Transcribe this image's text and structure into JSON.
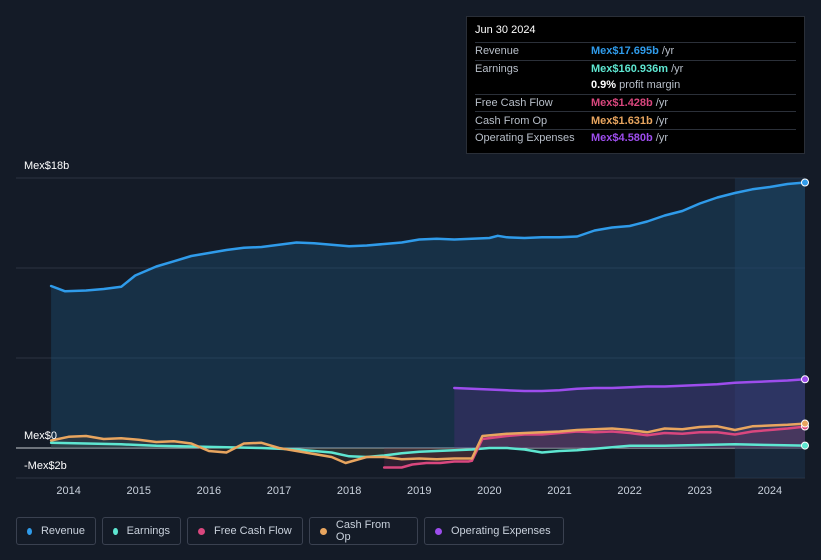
{
  "tooltip": {
    "date": "Jun 30 2024",
    "rows": [
      {
        "label": "Revenue",
        "value": "Mex$17.695b",
        "unit": "/yr",
        "color": "#2f9bea"
      },
      {
        "label": "Earnings",
        "value": "Mex$160.936m",
        "unit": "/yr",
        "color": "#5ee6d1"
      },
      {
        "label": "",
        "value": "0.9%",
        "unit": "profit margin",
        "color": "#ffffff"
      },
      {
        "label": "Free Cash Flow",
        "value": "Mex$1.428b",
        "unit": "/yr",
        "color": "#d9477e"
      },
      {
        "label": "Cash From Op",
        "value": "Mex$1.631b",
        "unit": "/yr",
        "color": "#e8a55f"
      },
      {
        "label": "Operating Expenses",
        "value": "Mex$4.580b",
        "unit": "/yr",
        "color": "#9d4ded"
      }
    ]
  },
  "legend": [
    {
      "label": "Revenue",
      "color": "#2f9bea"
    },
    {
      "label": "Earnings",
      "color": "#5ee6d1"
    },
    {
      "label": "Free Cash Flow",
      "color": "#d9477e"
    },
    {
      "label": "Cash From Op",
      "color": "#e8a55f"
    },
    {
      "label": "Operating Expenses",
      "color": "#9d4ded"
    }
  ],
  "chart_data": {
    "type": "area",
    "title": "",
    "xlabel": "",
    "ylabel": "",
    "y_labels": {
      "top": "Mex$18b",
      "zero": "Mex$0",
      "bottom": "-Mex$2b"
    },
    "ylim": [
      -2,
      18
    ],
    "xlim": [
      2013.25,
      2024.5
    ],
    "x_ticks": [
      "2014",
      "2015",
      "2016",
      "2017",
      "2018",
      "2019",
      "2020",
      "2021",
      "2022",
      "2023",
      "2024"
    ],
    "x_tick_values": [
      2014,
      2015,
      2016,
      2017,
      2018,
      2019,
      2020,
      2021,
      2022,
      2023,
      2024
    ],
    "series": [
      {
        "name": "Revenue",
        "color": "#2f9bea",
        "x": [
          2013.75,
          2013.95,
          2014.25,
          2014.5,
          2014.75,
          2014.95,
          2015.25,
          2015.5,
          2015.75,
          2016,
          2016.25,
          2016.5,
          2016.75,
          2017,
          2017.25,
          2017.5,
          2017.75,
          2018,
          2018.25,
          2018.5,
          2018.75,
          2019,
          2019.25,
          2019.5,
          2019.75,
          2020,
          2020.12,
          2020.25,
          2020.5,
          2020.75,
          2021,
          2021.25,
          2021.5,
          2021.75,
          2022,
          2022.25,
          2022.5,
          2022.75,
          2023,
          2023.25,
          2023.5,
          2023.75,
          2024,
          2024.25,
          2024.5
        ],
        "values": [
          10.8,
          10.45,
          10.5,
          10.6,
          10.75,
          11.5,
          12.1,
          12.45,
          12.8,
          13.0,
          13.2,
          13.35,
          13.4,
          13.55,
          13.7,
          13.65,
          13.55,
          13.45,
          13.5,
          13.6,
          13.7,
          13.9,
          13.95,
          13.9,
          13.95,
          14.0,
          14.15,
          14.05,
          14.0,
          14.05,
          14.05,
          14.1,
          14.5,
          14.7,
          14.8,
          15.1,
          15.5,
          15.8,
          16.3,
          16.7,
          17.0,
          17.25,
          17.4,
          17.6,
          17.7
        ]
      },
      {
        "name": "Earnings",
        "color": "#5ee6d1",
        "x": [
          2013.75,
          2014.25,
          2014.75,
          2015.25,
          2015.75,
          2016.25,
          2016.75,
          2017.25,
          2017.75,
          2018,
          2018.25,
          2018.5,
          2018.75,
          2019,
          2019.25,
          2019.5,
          2019.75,
          2020,
          2020.25,
          2020.5,
          2020.75,
          2021,
          2021.25,
          2021.5,
          2021.75,
          2022,
          2022.5,
          2023,
          2023.5,
          2024,
          2024.5
        ],
        "values": [
          0.35,
          0.3,
          0.25,
          0.15,
          0.1,
          0.05,
          0.0,
          -0.1,
          -0.3,
          -0.55,
          -0.6,
          -0.5,
          -0.35,
          -0.25,
          -0.2,
          -0.15,
          -0.1,
          0.0,
          0.0,
          -0.1,
          -0.3,
          -0.2,
          -0.15,
          -0.05,
          0.05,
          0.15,
          0.15,
          0.2,
          0.25,
          0.2,
          0.16
        ]
      },
      {
        "name": "Free Cash Flow",
        "color": "#d9477e",
        "x": [
          2018.5,
          2018.75,
          2018.9,
          2019.1,
          2019.3,
          2019.5,
          2019.7,
          2019.75,
          2019.9,
          2020.25,
          2020.5,
          2020.75,
          2021,
          2021.25,
          2021.5,
          2021.75,
          2022,
          2022.25,
          2022.5,
          2022.75,
          2023,
          2023.25,
          2023.5,
          2023.75,
          2024,
          2024.25,
          2024.5
        ],
        "values": [
          -1.3,
          -1.3,
          -1.1,
          -1.0,
          -1.0,
          -0.9,
          -0.9,
          -0.85,
          0.6,
          0.8,
          0.9,
          0.9,
          1.0,
          1.1,
          1.05,
          1.1,
          1.0,
          0.85,
          1.0,
          0.95,
          1.05,
          1.05,
          0.9,
          1.1,
          1.2,
          1.3,
          1.43
        ]
      },
      {
        "name": "Cash From Op",
        "color": "#e8a55f",
        "x": [
          2013.75,
          2014,
          2014.25,
          2014.5,
          2014.75,
          2015,
          2015.25,
          2015.5,
          2015.75,
          2016,
          2016.25,
          2016.5,
          2016.75,
          2017,
          2017.25,
          2017.5,
          2017.75,
          2017.95,
          2018.25,
          2018.5,
          2018.75,
          2019,
          2019.25,
          2019.5,
          2019.75,
          2019.9,
          2020.25,
          2020.5,
          2020.75,
          2021,
          2021.25,
          2021.5,
          2021.75,
          2022,
          2022.25,
          2022.5,
          2022.75,
          2023,
          2023.25,
          2023.5,
          2023.75,
          2024,
          2024.25,
          2024.5
        ],
        "values": [
          0.5,
          0.75,
          0.8,
          0.6,
          0.65,
          0.55,
          0.4,
          0.45,
          0.3,
          -0.2,
          -0.3,
          0.3,
          0.35,
          0.0,
          -0.2,
          -0.4,
          -0.6,
          -1.0,
          -0.6,
          -0.6,
          -0.75,
          -0.7,
          -0.75,
          -0.7,
          -0.7,
          0.8,
          0.95,
          1.0,
          1.05,
          1.1,
          1.2,
          1.25,
          1.3,
          1.2,
          1.05,
          1.3,
          1.25,
          1.4,
          1.45,
          1.2,
          1.45,
          1.5,
          1.55,
          1.63
        ]
      },
      {
        "name": "Operating Expenses",
        "color": "#9d4ded",
        "x": [
          2019.5,
          2019.75,
          2020,
          2020.25,
          2020.5,
          2020.75,
          2021,
          2021.25,
          2021.5,
          2021.75,
          2022,
          2022.25,
          2022.5,
          2022.75,
          2023,
          2023.25,
          2023.5,
          2023.75,
          2024,
          2024.25,
          2024.5
        ],
        "values": [
          4.0,
          3.95,
          3.9,
          3.85,
          3.8,
          3.8,
          3.85,
          3.95,
          4.0,
          4.0,
          4.05,
          4.1,
          4.1,
          4.15,
          4.2,
          4.25,
          4.35,
          4.4,
          4.45,
          4.5,
          4.58
        ]
      }
    ]
  }
}
